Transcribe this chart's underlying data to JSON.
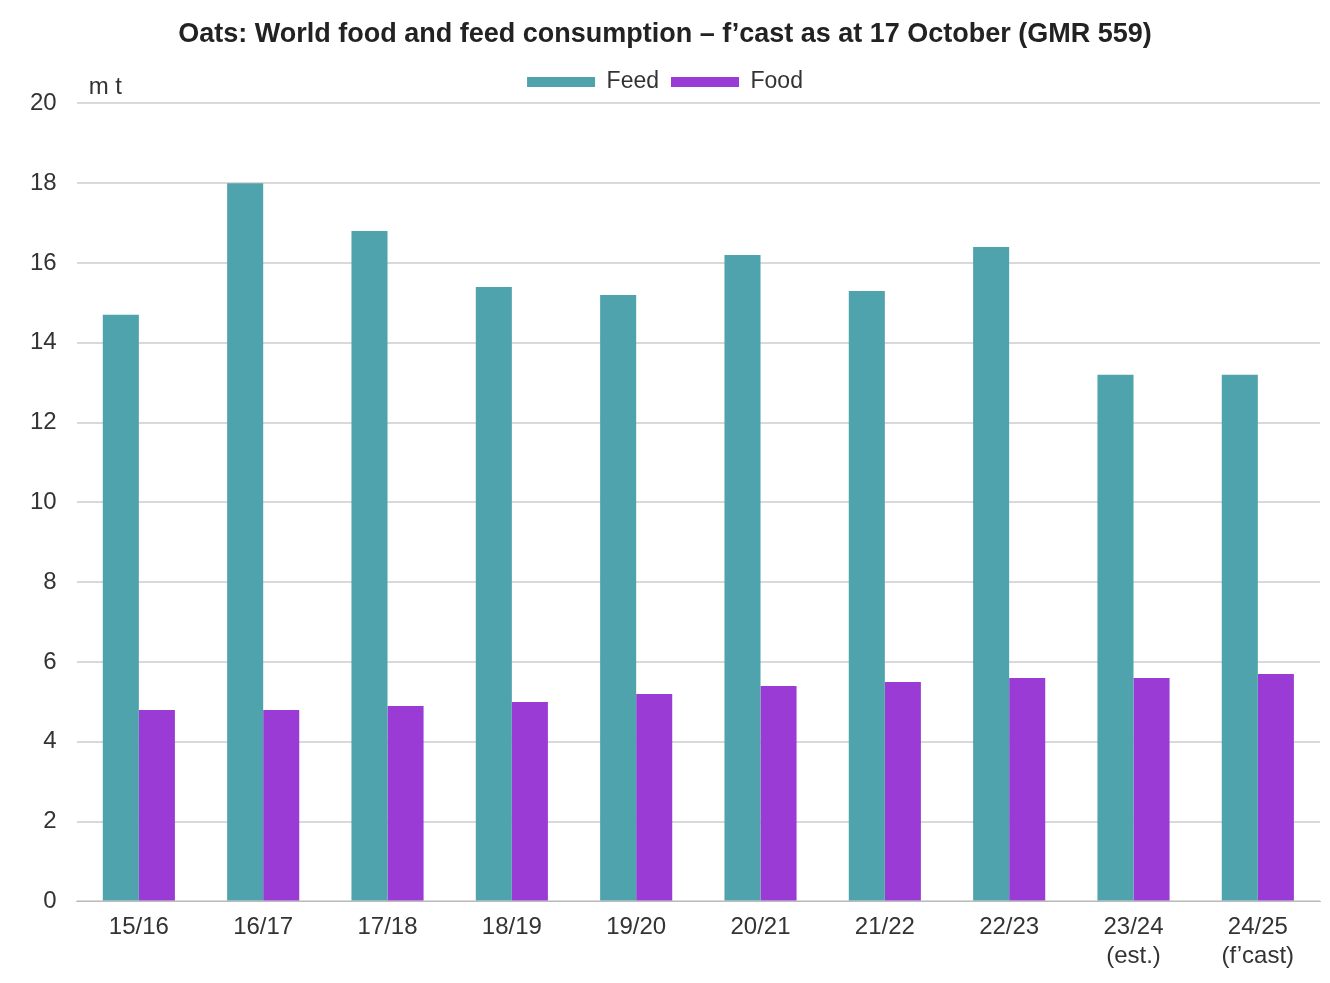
{
  "chart_data": {
    "type": "bar",
    "title": "Oats: World food and feed consumption – f’cast as at 17 October (GMR 559)",
    "ylabel": "m t",
    "categories": [
      "15/16",
      "16/17",
      "17/18",
      "18/19",
      "19/20",
      "20/21",
      "21/22",
      "22/23",
      "23/24\n(est.)",
      "24/25\n(f’cast)"
    ],
    "series": [
      {
        "name": "Feed",
        "color": "#4fa3ad",
        "values": [
          14.7,
          18.0,
          16.8,
          15.4,
          15.2,
          16.2,
          15.3,
          16.4,
          13.2,
          13.2
        ]
      },
      {
        "name": "Food",
        "color": "#9b3bd6",
        "values": [
          4.8,
          4.8,
          4.9,
          5.0,
          5.2,
          5.4,
          5.5,
          5.6,
          5.6,
          5.7
        ]
      }
    ],
    "ylim": [
      0,
      20
    ],
    "yticks": [
      0,
      2,
      4,
      6,
      8,
      10,
      12,
      14,
      16,
      18,
      20
    ],
    "grid": "y",
    "legend": "top"
  }
}
